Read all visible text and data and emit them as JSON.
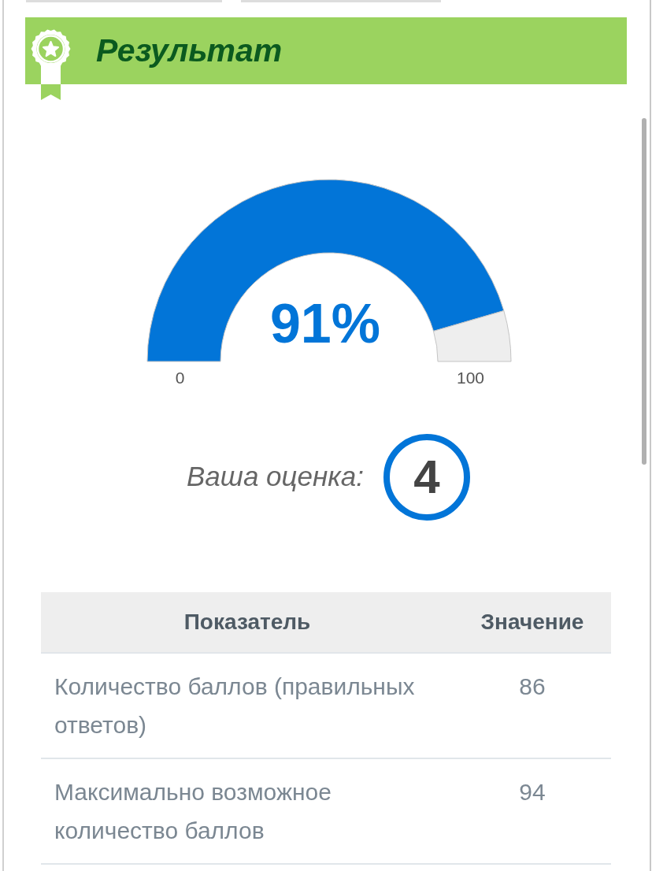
{
  "chart_data": {
    "type": "donut",
    "title": "Результат",
    "categories": [
      null,
      null
    ],
    "values": [
      91,
      9
    ],
    "colors": [
      "#0275d8",
      "#eeeeee"
    ],
    "value_labels": [
      "91%",
      null
    ],
    "annotations": [
      "0",
      "100",
      "Ваша оценка:",
      "4",
      "Показатель",
      "Значение",
      "Количество баллов (правильных ответов)",
      "86",
      "Максимально возможное количество баллов",
      "94"
    ]
  }
}
